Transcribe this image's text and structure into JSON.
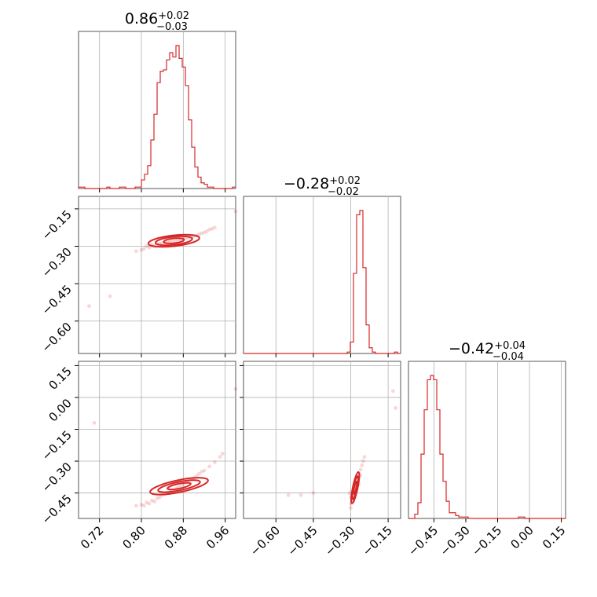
{
  "chart_data": {
    "type": "corner",
    "color": "#d62728",
    "grid": true,
    "parameters": [
      {
        "title": {
          "median": "0.86",
          "plus": "+0.02",
          "minus": "−0.03"
        },
        "range": [
          0.68,
          0.98
        ]
      },
      {
        "title": {
          "median": "−0.28",
          "plus": "+0.02",
          "minus": "−0.02"
        },
        "range": [
          -0.73,
          -0.1
        ]
      },
      {
        "title": {
          "median": "−0.42",
          "plus": "+0.04",
          "minus": "−0.04"
        },
        "range": [
          -0.57,
          0.17
        ]
      }
    ],
    "ticks": {
      "p0": [
        0.72,
        0.8,
        0.88,
        0.96
      ],
      "p1": [
        -0.6,
        -0.45,
        -0.3,
        -0.15
      ],
      "p2": [
        -0.45,
        -0.3,
        -0.15,
        0.0,
        0.15
      ]
    },
    "tick_labels": {
      "p0": [
        "0.72",
        "0.80",
        "0.88",
        "0.96"
      ],
      "p1": [
        "−0.60",
        "−0.45",
        "−0.30",
        "−0.15"
      ],
      "p2": [
        "−0.45",
        "−0.30",
        "−0.15",
        "0.00",
        "0.15"
      ]
    },
    "histograms": [
      {
        "param": 0,
        "bins": [
          0.68,
          0.686,
          0.692,
          0.698,
          0.704,
          0.71,
          0.716,
          0.722,
          0.728,
          0.734,
          0.74,
          0.746,
          0.752,
          0.758,
          0.764,
          0.77,
          0.776,
          0.782,
          0.788,
          0.794,
          0.8,
          0.806,
          0.812,
          0.818,
          0.824,
          0.83,
          0.836,
          0.842,
          0.848,
          0.854,
          0.86,
          0.866,
          0.872,
          0.878,
          0.884,
          0.89,
          0.896,
          0.902,
          0.908,
          0.914,
          0.92,
          0.926,
          0.932,
          0.938,
          0.944,
          0.95,
          0.956,
          0.962,
          0.968,
          0.974,
          0.98
        ],
        "counts": [
          1,
          1,
          0,
          0,
          0,
          0,
          0,
          0,
          0,
          1,
          0,
          0,
          0,
          1,
          1,
          0,
          0,
          0,
          1,
          1,
          6,
          10,
          16,
          34,
          52,
          74,
          82,
          83,
          90,
          95,
          92,
          100,
          91,
          85,
          72,
          48,
          29,
          15,
          8,
          4,
          3,
          1,
          1,
          0,
          0,
          0,
          0,
          0,
          0,
          1
        ]
      },
      {
        "param": 1,
        "bins": [
          -0.73,
          -0.7174,
          -0.7048,
          -0.6922,
          -0.6796,
          -0.667,
          -0.6544,
          -0.6418,
          -0.6292,
          -0.6166,
          -0.604,
          -0.5914,
          -0.5788,
          -0.5662,
          -0.5536,
          -0.541,
          -0.5284,
          -0.5158,
          -0.5032,
          -0.4906,
          -0.478,
          -0.4654,
          -0.4528,
          -0.4402,
          -0.4276,
          -0.415,
          -0.4024,
          -0.3898,
          -0.3772,
          -0.3646,
          -0.352,
          -0.3394,
          -0.3268,
          -0.3142,
          -0.3016,
          -0.289,
          -0.2764,
          -0.2638,
          -0.2512,
          -0.2386,
          -0.226,
          -0.2134,
          -0.2008,
          -0.1882,
          -0.1756,
          -0.163,
          -0.1504,
          -0.1378,
          -0.1252,
          -0.1126,
          -0.1
        ],
        "counts": [
          0,
          0,
          0,
          0,
          0,
          0,
          0,
          0,
          0,
          0,
          0,
          0,
          0,
          0,
          0,
          0,
          0,
          0,
          0,
          0,
          0,
          0,
          0,
          0,
          0,
          0,
          0,
          0,
          0,
          0,
          0,
          0,
          0,
          1,
          8,
          56,
          97,
          100,
          60,
          20,
          4,
          1,
          0,
          0,
          0,
          0,
          0,
          0,
          1,
          0
        ]
      },
      {
        "param": 2,
        "bins": [
          -0.57,
          -0.5552,
          -0.5404,
          -0.5256,
          -0.5108,
          -0.496,
          -0.4812,
          -0.4664,
          -0.4516,
          -0.4368,
          -0.422,
          -0.4072,
          -0.3924,
          -0.3776,
          -0.3628,
          -0.348,
          -0.3332,
          -0.3184,
          -0.3036,
          -0.2888,
          -0.274,
          -0.2592,
          -0.2444,
          -0.2296,
          -0.2148,
          -0.2,
          -0.1852,
          -0.1704,
          -0.1556,
          -0.1408,
          -0.126,
          -0.1112,
          -0.0964,
          -0.0816,
          -0.0668,
          -0.052,
          -0.0372,
          -0.0224,
          -0.0076,
          0.0072,
          0.022,
          0.0368,
          0.0516,
          0.0664,
          0.0812,
          0.096,
          0.1108,
          0.1256,
          0.1404,
          0.1552,
          0.17
        ],
        "counts": [
          0,
          0,
          3,
          11,
          45,
          76,
          97,
          100,
          97,
          76,
          45,
          26,
          12,
          4,
          4,
          2,
          1,
          1,
          1,
          0,
          0,
          0,
          0,
          0,
          0,
          0,
          0,
          0,
          0,
          0,
          0,
          0,
          0,
          0,
          0,
          1,
          1,
          0,
          0,
          0,
          0,
          0,
          0,
          0,
          0,
          0,
          0,
          0,
          0,
          0
        ]
      }
    ],
    "scatter_panels": [
      {
        "x_param": 0,
        "y_param": 1,
        "points": [
          [
            0.81,
            -0.3
          ],
          [
            0.815,
            -0.305
          ],
          [
            0.82,
            -0.295
          ],
          [
            0.825,
            -0.3
          ],
          [
            0.83,
            -0.292
          ],
          [
            0.835,
            -0.29
          ],
          [
            0.84,
            -0.288
          ],
          [
            0.845,
            -0.285
          ],
          [
            0.85,
            -0.283
          ],
          [
            0.855,
            -0.281
          ],
          [
            0.86,
            -0.279
          ],
          [
            0.865,
            -0.277
          ],
          [
            0.87,
            -0.275
          ],
          [
            0.875,
            -0.272
          ],
          [
            0.88,
            -0.27
          ],
          [
            0.885,
            -0.267
          ],
          [
            0.89,
            -0.265
          ],
          [
            0.895,
            -0.262
          ],
          [
            0.9,
            -0.26
          ],
          [
            0.905,
            -0.257
          ],
          [
            0.91,
            -0.252
          ],
          [
            0.915,
            -0.248
          ],
          [
            0.92,
            -0.245
          ],
          [
            0.925,
            -0.24
          ],
          [
            0.93,
            -0.233
          ],
          [
            0.935,
            -0.23
          ],
          [
            0.805,
            -0.31
          ],
          [
            0.8,
            -0.315
          ],
          [
            0.79,
            -0.32
          ],
          [
            0.94,
            -0.225
          ],
          [
            0.98,
            -0.16
          ],
          [
            0.7,
            -0.54
          ],
          [
            0.74,
            -0.5
          ]
        ],
        "contours": [
          {
            "center": [
              0.862,
              -0.278
            ],
            "rx": 0.05,
            "ry": 0.02,
            "angle_deg": -13
          },
          {
            "center": [
              0.862,
              -0.278
            ],
            "rx": 0.036,
            "ry": 0.015,
            "angle_deg": -13
          },
          {
            "center": [
              0.862,
              -0.278
            ],
            "rx": 0.02,
            "ry": 0.009,
            "angle_deg": -13
          }
        ]
      },
      {
        "x_param": 0,
        "y_param": 2,
        "points": [
          [
            0.8,
            -0.505
          ],
          [
            0.81,
            -0.495
          ],
          [
            0.82,
            -0.485
          ],
          [
            0.83,
            -0.475
          ],
          [
            0.84,
            -0.46
          ],
          [
            0.85,
            -0.45
          ],
          [
            0.86,
            -0.44
          ],
          [
            0.87,
            -0.425
          ],
          [
            0.88,
            -0.41
          ],
          [
            0.89,
            -0.395
          ],
          [
            0.9,
            -0.38
          ],
          [
            0.91,
            -0.36
          ],
          [
            0.92,
            -0.345
          ],
          [
            0.93,
            -0.325
          ],
          [
            0.94,
            -0.305
          ],
          [
            0.95,
            -0.28
          ],
          [
            0.955,
            -0.265
          ],
          [
            0.805,
            -0.51
          ],
          [
            0.815,
            -0.5
          ],
          [
            0.825,
            -0.49
          ],
          [
            0.835,
            -0.47
          ],
          [
            0.845,
            -0.455
          ],
          [
            0.855,
            -0.445
          ],
          [
            0.865,
            -0.43
          ],
          [
            0.875,
            -0.42
          ],
          [
            0.885,
            -0.4
          ],
          [
            0.895,
            -0.385
          ],
          [
            0.905,
            -0.37
          ],
          [
            0.915,
            -0.35
          ],
          [
            0.98,
            0.04
          ],
          [
            0.71,
            -0.12
          ],
          [
            0.79,
            -0.51
          ]
        ],
        "contours": [
          {
            "center": [
              0.872,
              -0.418
            ],
            "rx": 0.062,
            "ry": 0.02,
            "angle_deg": -27
          },
          {
            "center": [
              0.872,
              -0.418
            ],
            "rx": 0.045,
            "ry": 0.014,
            "angle_deg": -27
          },
          {
            "center": [
              0.872,
              -0.418
            ],
            "rx": 0.025,
            "ry": 0.008,
            "angle_deg": -27
          }
        ]
      },
      {
        "x_param": 1,
        "y_param": 2,
        "points": [
          [
            -0.3,
            -0.5
          ],
          [
            -0.295,
            -0.48
          ],
          [
            -0.29,
            -0.46
          ],
          [
            -0.285,
            -0.44
          ],
          [
            -0.28,
            -0.42
          ],
          [
            -0.275,
            -0.4
          ],
          [
            -0.27,
            -0.38
          ],
          [
            -0.265,
            -0.36
          ],
          [
            -0.26,
            -0.34
          ],
          [
            -0.255,
            -0.32
          ],
          [
            -0.25,
            -0.3
          ],
          [
            -0.245,
            -0.28
          ],
          [
            -0.3,
            -0.47
          ],
          [
            -0.29,
            -0.49
          ],
          [
            -0.275,
            -0.43
          ],
          [
            -0.268,
            -0.41
          ],
          [
            -0.262,
            -0.37
          ],
          [
            -0.305,
            -0.45
          ],
          [
            -0.285,
            -0.42
          ],
          [
            -0.3,
            -0.52
          ],
          [
            -0.45,
            -0.45
          ],
          [
            -0.5,
            -0.46
          ],
          [
            -0.55,
            -0.46
          ],
          [
            -0.12,
            -0.05
          ],
          [
            -0.13,
            0.03
          ]
        ],
        "contours": [
          {
            "center": [
              -0.282,
              -0.425
            ],
            "rx": 0.075,
            "ry": 0.01,
            "angle_deg": -80
          },
          {
            "center": [
              -0.282,
              -0.425
            ],
            "rx": 0.055,
            "ry": 0.007,
            "angle_deg": -80
          },
          {
            "center": [
              -0.282,
              -0.425
            ],
            "rx": 0.03,
            "ry": 0.004,
            "angle_deg": -80
          }
        ]
      }
    ]
  }
}
